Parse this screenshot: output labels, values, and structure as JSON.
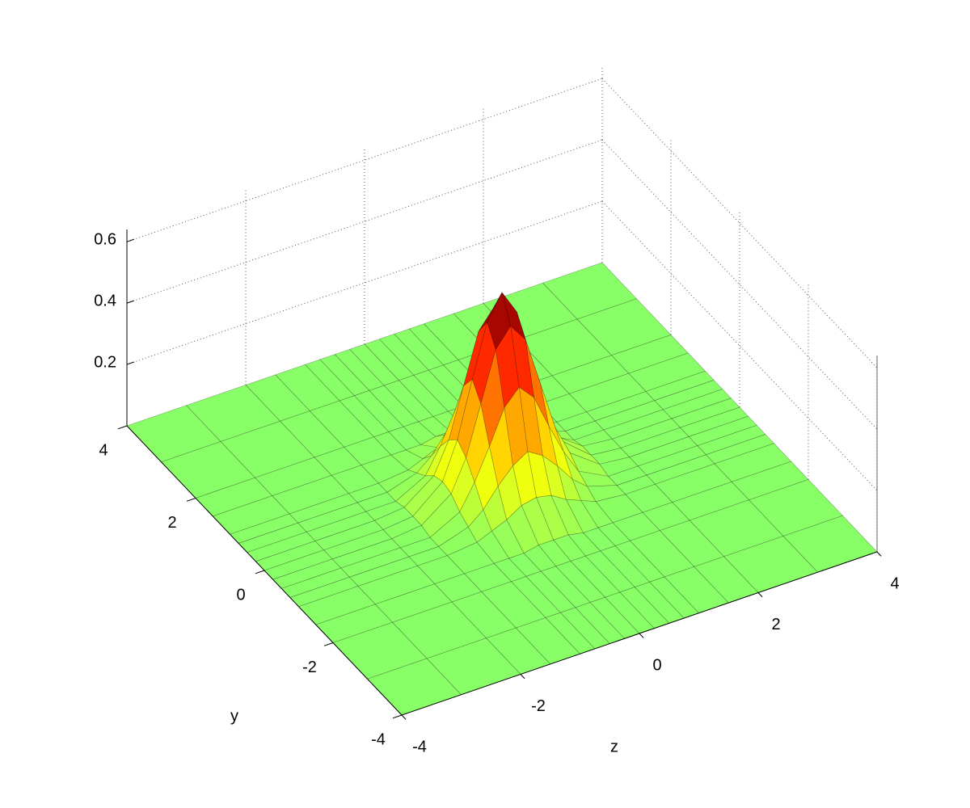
{
  "chart_data": {
    "type": "surface",
    "x": [
      -4,
      -3,
      -2,
      -1.5,
      -1,
      -0.75,
      -0.5,
      -0.25,
      0,
      0.25,
      0.5,
      0.75,
      1,
      1.5,
      2,
      3,
      4
    ],
    "y": [
      -4,
      -3,
      -2,
      -1.5,
      -1,
      -0.75,
      -0.5,
      -0.25,
      0,
      0.25,
      0.5,
      0.75,
      1,
      1.5,
      2,
      3,
      4
    ],
    "z": [
      [
        0,
        0,
        0,
        0,
        0,
        0,
        0,
        0,
        0,
        0,
        0,
        0,
        0,
        0,
        0,
        0,
        0
      ],
      [
        0,
        0,
        0,
        0,
        0,
        0,
        0,
        0,
        0,
        0,
        0,
        0,
        0,
        0,
        0,
        0,
        0
      ],
      [
        0,
        0,
        0,
        0,
        0,
        0,
        0,
        0,
        0,
        0,
        0,
        0,
        0,
        0,
        0,
        0,
        0
      ],
      [
        0,
        0,
        0,
        0,
        0,
        0,
        0,
        0.01,
        0.01,
        0.01,
        0,
        0,
        0,
        0,
        0,
        0,
        0
      ],
      [
        0,
        0,
        0,
        0,
        0.01,
        0.03,
        0.05,
        0.08,
        0.09,
        0.08,
        0.05,
        0.03,
        0.01,
        0,
        0,
        0,
        0
      ],
      [
        0,
        0,
        0,
        0,
        0.03,
        0.07,
        0.13,
        0.18,
        0.21,
        0.18,
        0.13,
        0.07,
        0.03,
        0,
        0,
        0,
        0
      ],
      [
        0,
        0,
        0,
        0,
        0.05,
        0.13,
        0.23,
        0.34,
        0.39,
        0.34,
        0.23,
        0.13,
        0.05,
        0,
        0,
        0,
        0
      ],
      [
        0,
        0,
        0,
        0.01,
        0.08,
        0.18,
        0.34,
        0.5,
        0.56,
        0.5,
        0.34,
        0.18,
        0.08,
        0.01,
        0,
        0,
        0
      ],
      [
        0,
        0,
        0,
        0.01,
        0.09,
        0.21,
        0.39,
        0.56,
        0.64,
        0.56,
        0.39,
        0.21,
        0.09,
        0.01,
        0,
        0,
        0
      ],
      [
        0,
        0,
        0,
        0.01,
        0.08,
        0.18,
        0.34,
        0.5,
        0.56,
        0.5,
        0.34,
        0.18,
        0.08,
        0.01,
        0,
        0,
        0
      ],
      [
        0,
        0,
        0,
        0,
        0.05,
        0.13,
        0.23,
        0.34,
        0.39,
        0.34,
        0.23,
        0.13,
        0.05,
        0,
        0,
        0,
        0
      ],
      [
        0,
        0,
        0,
        0,
        0.03,
        0.07,
        0.13,
        0.18,
        0.21,
        0.18,
        0.13,
        0.07,
        0.03,
        0,
        0,
        0,
        0
      ],
      [
        0,
        0,
        0,
        0,
        0.01,
        0.03,
        0.05,
        0.08,
        0.09,
        0.08,
        0.05,
        0.03,
        0.01,
        0,
        0,
        0,
        0
      ],
      [
        0,
        0,
        0,
        0,
        0,
        0,
        0,
        0.01,
        0.01,
        0.01,
        0,
        0,
        0,
        0,
        0,
        0,
        0
      ],
      [
        0,
        0,
        0,
        0,
        0,
        0,
        0,
        0,
        0,
        0,
        0,
        0,
        0,
        0,
        0,
        0,
        0
      ],
      [
        0,
        0,
        0,
        0,
        0,
        0,
        0,
        0,
        0,
        0,
        0,
        0,
        0,
        0,
        0,
        0,
        0
      ],
      [
        0,
        0,
        0,
        0,
        0,
        0,
        0,
        0,
        0,
        0,
        0,
        0,
        0,
        0,
        0,
        0,
        0
      ]
    ],
    "xlabel": "z",
    "ylabel": "y",
    "xlim": [
      -4,
      4
    ],
    "ylim": [
      -4,
      4
    ],
    "zlim": [
      0,
      0.64
    ],
    "xticks": [
      -4,
      -2,
      0,
      2,
      4
    ],
    "yticks": [
      -4,
      -2,
      0,
      2,
      4
    ],
    "zticks": [
      0.2,
      0.4,
      0.6
    ],
    "grid": true,
    "colormap": [
      "#88ff66",
      "#ffff00",
      "#ff8c00",
      "#ff1000",
      "#5a0000"
    ],
    "edgecolor": "#000000"
  }
}
